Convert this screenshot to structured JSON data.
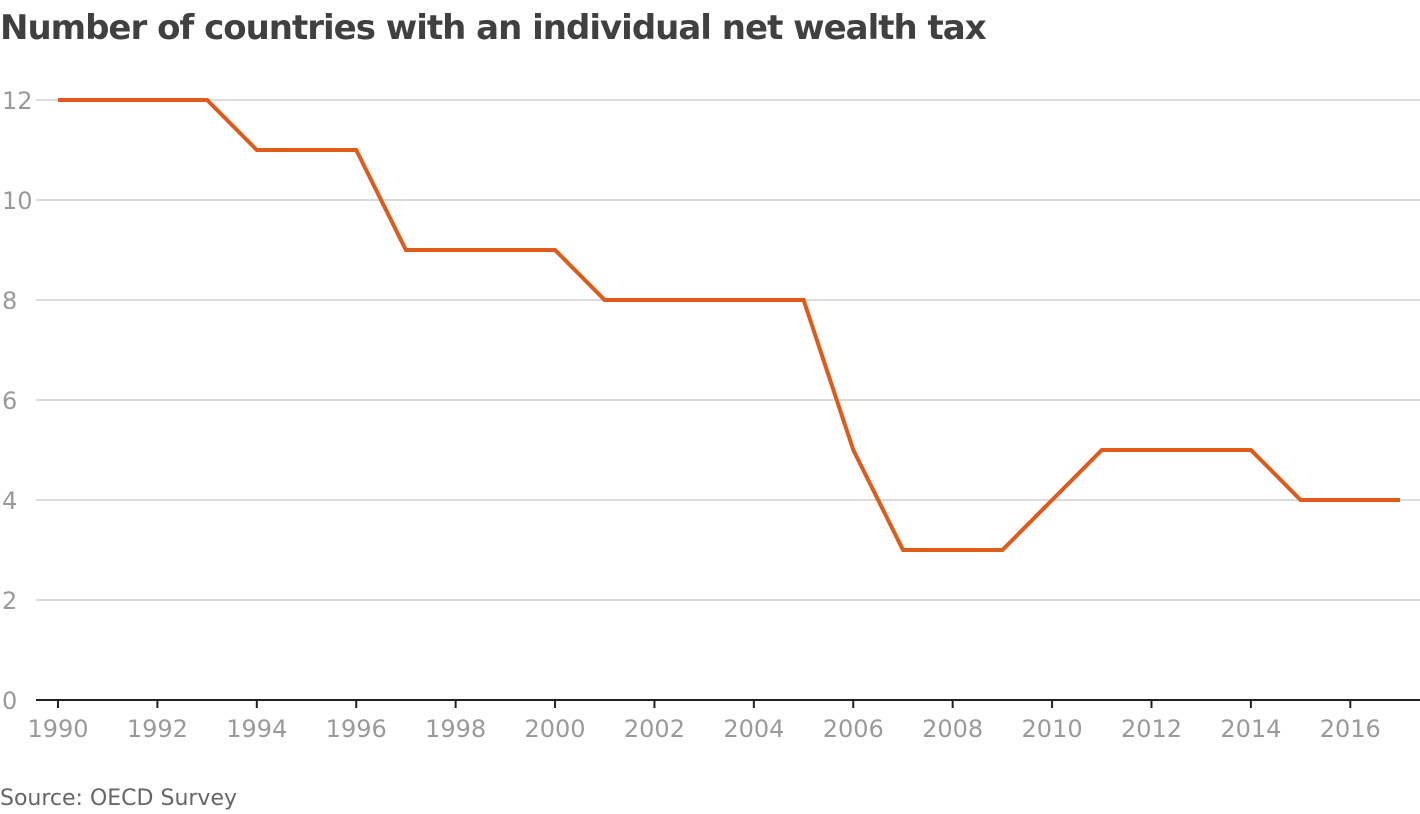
{
  "chart_data": {
    "type": "line",
    "title": "Number of countries with an individual net wealth tax",
    "xlabel": "",
    "ylabel": "",
    "xlim": [
      1990,
      2017
    ],
    "ylim": [
      0,
      12
    ],
    "grid": true,
    "x_ticks": [
      1990,
      1992,
      1994,
      1996,
      1998,
      2000,
      2002,
      2004,
      2006,
      2008,
      2010,
      2012,
      2014,
      2016
    ],
    "y_ticks": [
      0,
      2,
      4,
      6,
      8,
      10,
      12
    ],
    "x_tick_labels": [
      "1990",
      "1992",
      "1994",
      "1996",
      "1998",
      "2000",
      "2002",
      "2004",
      "2006",
      "2008",
      "2010",
      "2012",
      "2014",
      "2016"
    ],
    "y_tick_labels": [
      "0",
      "2",
      "4",
      "6",
      "8",
      "10",
      "12"
    ],
    "series": [
      {
        "name": "Countries with individual net wealth tax",
        "color": "#e05a1a",
        "x": [
          1990,
          1991,
          1992,
          1993,
          1994,
          1995,
          1996,
          1997,
          1998,
          1999,
          2000,
          2001,
          2002,
          2003,
          2004,
          2005,
          2006,
          2007,
          2008,
          2009,
          2010,
          2011,
          2012,
          2013,
          2014,
          2015,
          2016,
          2017
        ],
        "values": [
          12,
          12,
          12,
          12,
          11,
          11,
          11,
          9,
          9,
          9,
          9,
          8,
          8,
          8,
          8,
          8,
          5,
          3,
          3,
          3,
          4,
          5,
          5,
          5,
          5,
          4,
          4,
          4
        ]
      }
    ],
    "source": "Source: OECD Survey"
  }
}
